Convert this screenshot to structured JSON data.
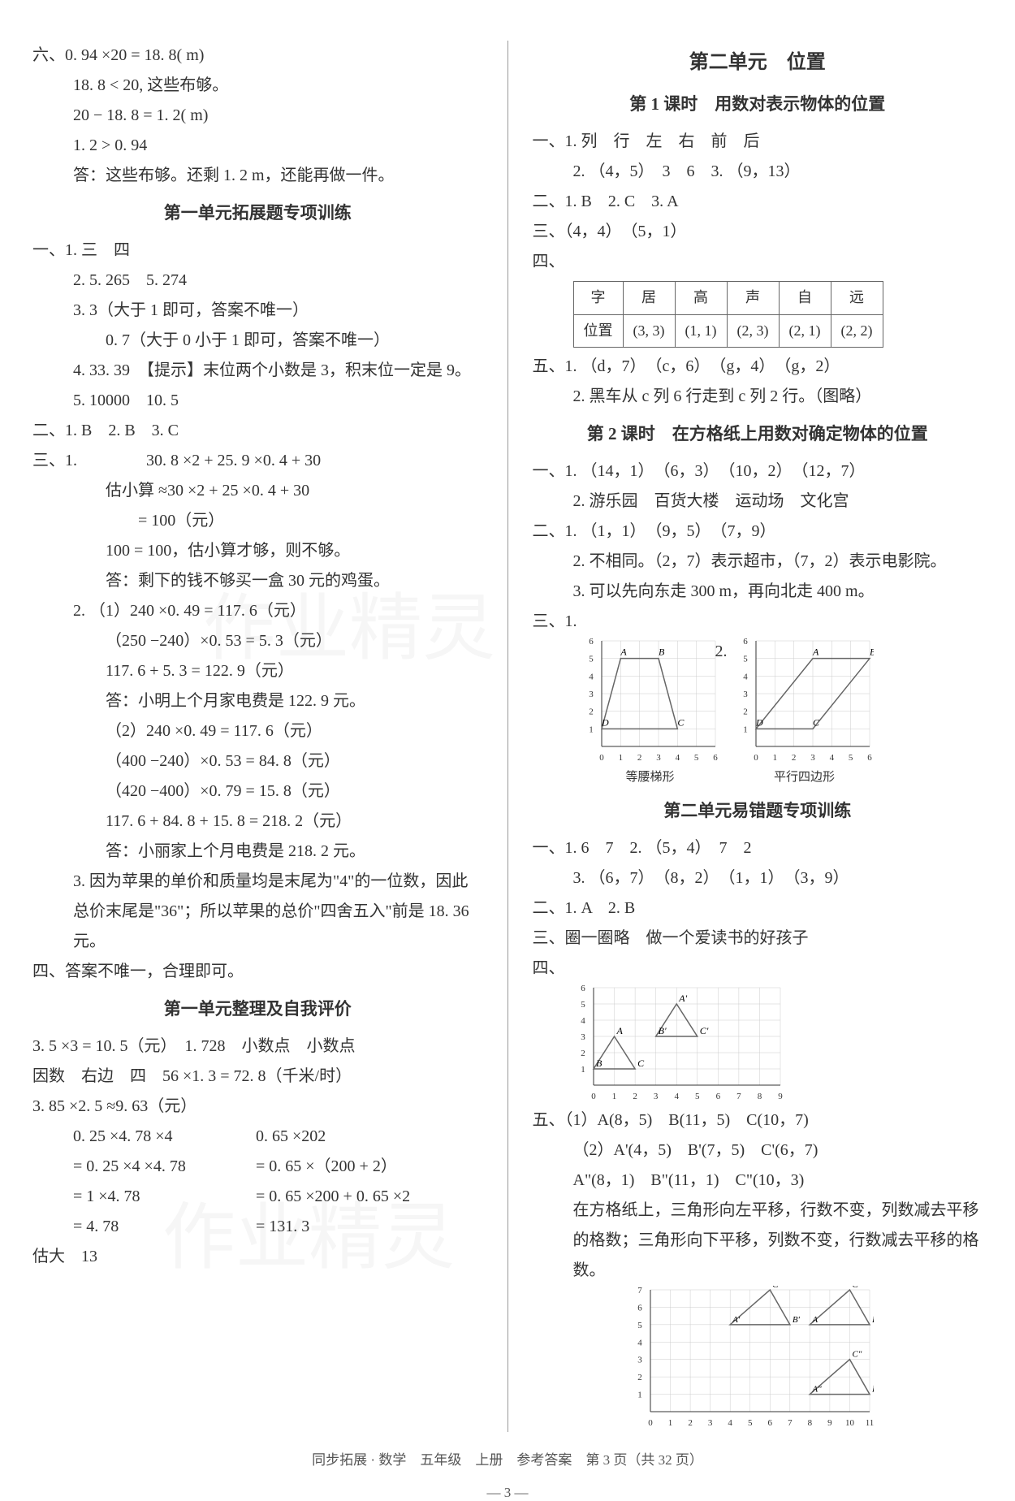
{
  "left": {
    "q6": [
      "六、0. 94 ×20 = 18. 8( m)",
      "18. 8 < 20,  这些布够。",
      "20 − 18. 8 = 1. 2( m)",
      "1. 2 > 0. 94",
      "答：这些布够。还剩 1. 2 m，还能再做一件。"
    ],
    "heading_ext": "第一单元拓展题专项训练",
    "s1": {
      "title": "一、1.  三　四",
      "items": [
        "2.  5. 265　5. 274",
        "3.  3（大于 1 即可，答案不唯一）",
        "0. 7（大于 0 小于 1 即可，答案不唯一）",
        "4.  33. 39　【提示】末位两个小数是 3，积末位一定是 9。",
        "5.  10000　10. 5"
      ]
    },
    "s2": "二、1.  B　2.  B　3.  C",
    "s3_label": "三、1.",
    "s3_calc": [
      "30. 8 ×2 + 25. 9 ×0. 4 + 30",
      "估小算 ≈30 ×2 + 25 ×0. 4 + 30",
      "= 100（元）",
      "100 = 100，估小算才够，则不够。",
      "答：剩下的钱不够买一盒 30 元的鸡蛋。"
    ],
    "s3_2": [
      "2.  （1）240 ×0. 49 = 117. 6（元）",
      "（250 −240）×0. 53 = 5. 3（元）",
      "117. 6 + 5. 3 = 122. 9（元）",
      "答：小明上个月家电费是 122. 9 元。",
      "（2）240 ×0. 49 = 117. 6（元）",
      "（400 −240）×0. 53 = 84. 8（元）",
      "（420 −400）×0. 79 = 15. 8（元）",
      "117. 6 + 84. 8 + 15. 8 = 218. 2（元）",
      "答：小丽家上个月电费是 218. 2 元。"
    ],
    "s3_3": [
      "3.  因为苹果的单价和质量均是末尾为\"4\"的一位数，因此总价末尾是\"36\"；所以苹果的总价\"四舍五入\"前是 18. 36 元。"
    ],
    "s4": "四、答案不唯一，合理即可。",
    "heading_self": "第一单元整理及自我评价",
    "self": [
      "3. 5 ×3 = 10. 5（元）　1. 728　小数点　小数点",
      "因数　右边　四　56 ×1. 3 = 72. 8（千米/时）",
      "3. 85 ×2. 5 ≈9. 63（元）"
    ],
    "calc_left": [
      "0. 25 ×4. 78 ×4",
      "= 0. 25 ×4 ×4. 78",
      "= 1 ×4. 78",
      "= 4. 78"
    ],
    "calc_right": [
      "0. 65 ×202",
      "= 0. 65 ×（200 + 2）",
      "= 0. 65 ×200 + 0. 65 ×2",
      "= 131. 3"
    ],
    "last": "估大　13"
  },
  "right": {
    "unit_title": "第二单元　位置",
    "lesson1": "第 1 课时　用数对表示物体的位置",
    "l1_s1": [
      "一、1.  列　行　左　右　前　后",
      "2.  （4，5）　3　6　3.  （9，13）"
    ],
    "l1_s2": "二、1.  B　2.  C　3.  A",
    "l1_s3": "三、（4，4）　（5，1）",
    "l1_s4_label": "四、",
    "table": {
      "headers": [
        "字",
        "居",
        "高",
        "声",
        "自",
        "远"
      ],
      "row_label": "位置",
      "cells": [
        "(3, 3)",
        "(1, 1)",
        "(2, 3)",
        "(2, 1)",
        "(2, 2)"
      ]
    },
    "l1_s5": [
      "五、1.  （d，7）　（c，6）　（g，4）　（g，2）",
      "2.  黑车从 c 列 6 行走到 c 列 2 行。（图略）"
    ],
    "lesson2": "第 2 课时　在方格纸上用数对确定物体的位置",
    "l2_s1": [
      "一、1.  （14，1）　（6，3）　（10，2）　（12，7）",
      "2.  游乐园　百货大楼　运动场　文化宫"
    ],
    "l2_s2": [
      "二、1.  （1，1）　（9，5）　（7，9）",
      "2.  不相同。（2，7）表示超市，（7，2）表示电影院。",
      "3.  可以先向东走 300 m，再向北走 400 m。"
    ],
    "l2_s3_label": "三、1.",
    "chart1": {
      "xaxis": [
        0,
        1,
        2,
        3,
        4,
        5,
        6
      ],
      "yaxis": [
        1,
        2,
        3,
        4,
        5,
        6
      ],
      "labels": {
        "A": [
          1,
          5
        ],
        "B": [
          3,
          5
        ],
        "D": [
          0,
          1
        ],
        "C": [
          4,
          1
        ]
      },
      "caption": "等腰梯形",
      "color": "#666"
    },
    "chart2_label": "2.",
    "chart2": {
      "xaxis": [
        0,
        1,
        2,
        3,
        4,
        5,
        6
      ],
      "yaxis": [
        1,
        2,
        3,
        4,
        5,
        6
      ],
      "labels": {
        "A": [
          3,
          5
        ],
        "B": [
          6,
          5
        ],
        "D": [
          0,
          1
        ],
        "C": [
          3,
          1
        ]
      },
      "caption": "平行四边形",
      "color": "#666"
    },
    "heading_err": "第二单元易错题专项训练",
    "err_s1": [
      "一、1.  6　7　2.  （5，4）　7　2",
      "3.  （6，7）　（8，2）　（1，1）　（3，9）"
    ],
    "err_s2": "二、1.  A　2.  B",
    "err_s3": "三、圈一圈略　做一个爱读书的好孩子",
    "err_s4_label": "四、",
    "chart3": {
      "xaxis": [
        0,
        1,
        2,
        3,
        4,
        5,
        6,
        7,
        8,
        9
      ],
      "yaxis": [
        1,
        2,
        3,
        4,
        5,
        6
      ],
      "tri1": {
        "A": [
          1,
          3
        ],
        "B": [
          0,
          1
        ],
        "C": [
          2,
          1
        ]
      },
      "tri2": {
        "A'": [
          4,
          5
        ],
        "B'": [
          3,
          3
        ],
        "C'": [
          5,
          3
        ]
      },
      "color": "#666"
    },
    "err_s5": [
      "五、（1）A(8，5)　B(11，5)　C(10，7)",
      "（2）A'(4，5)　B'(7，5)　C'(6，7)",
      "A\"(8，1)　B\"(11，1)　C\"(10，3)",
      "在方格纸上，三角形向左平移，行数不变，列数减去平移的格数；三角形向下平移，列数不变，行数减去平移的格数。"
    ],
    "chart4": {
      "xaxis": [
        0,
        1,
        2,
        3,
        4,
        5,
        6,
        7,
        8,
        9,
        10,
        11
      ],
      "yaxis": [
        1,
        2,
        3,
        4,
        5,
        6,
        7
      ],
      "triangles": {
        "t1": {
          "A'": [
            4,
            5
          ],
          "B'": [
            7,
            5
          ],
          "C'": [
            6,
            7
          ]
        },
        "t2": {
          "A": [
            8,
            5
          ],
          "B": [
            11,
            5
          ],
          "C": [
            10,
            7
          ]
        },
        "t3": {
          "A\"": [
            8,
            1
          ],
          "B\"": [
            11,
            1
          ],
          "C\"": [
            10,
            3
          ]
        }
      },
      "color": "#666"
    }
  },
  "footer": "同步拓展 · 数学　五年级　上册　参考答案　第 3 页（共 32 页）",
  "page_num": "— 3 —",
  "watermark": "作业精灵"
}
